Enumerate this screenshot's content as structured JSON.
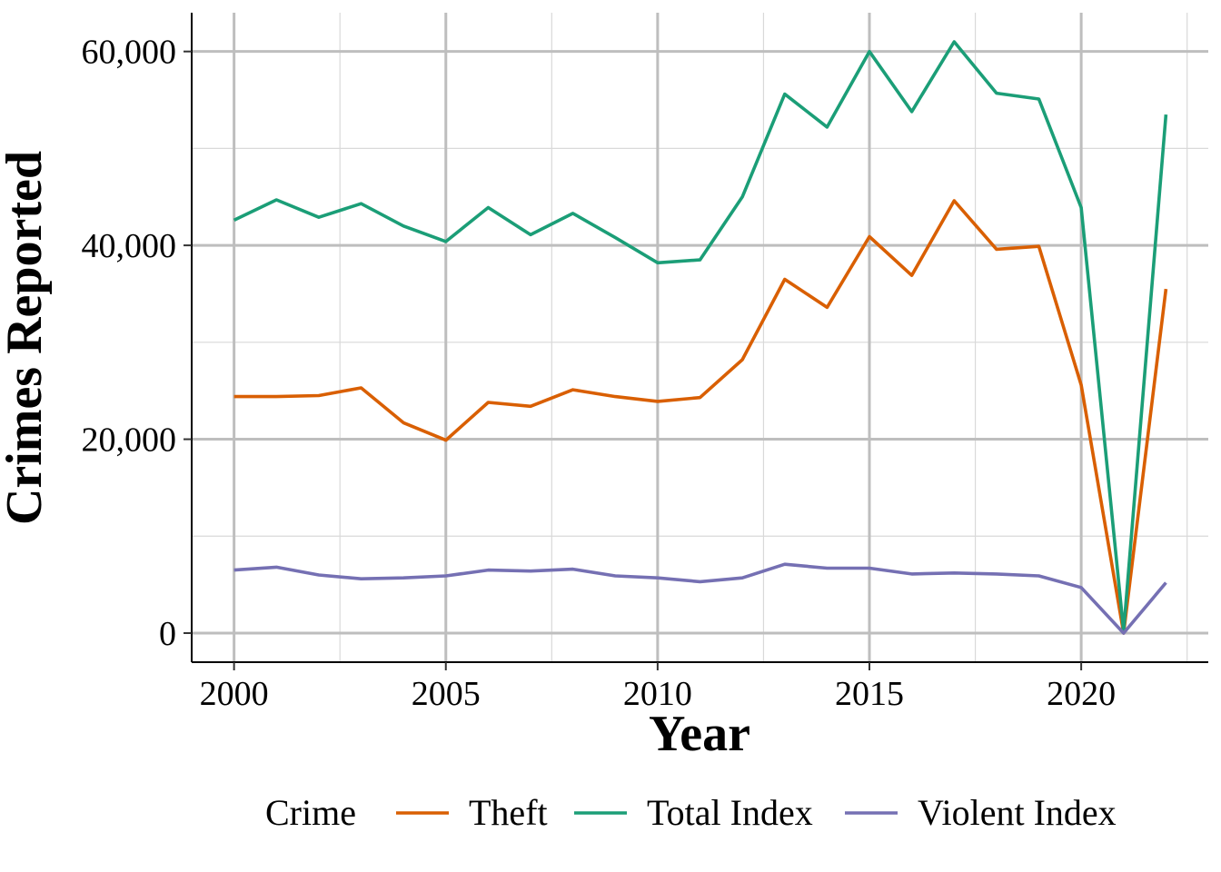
{
  "chart_data": {
    "type": "line",
    "title": "",
    "xlabel": "Year",
    "ylabel": "Crimes Reported",
    "x": [
      2000,
      2001,
      2002,
      2003,
      2004,
      2005,
      2006,
      2007,
      2008,
      2009,
      2010,
      2011,
      2012,
      2013,
      2014,
      2015,
      2016,
      2017,
      2018,
      2019,
      2020,
      2021,
      2022
    ],
    "xlim": [
      1999,
      2023
    ],
    "ylim": [
      -3000,
      64000
    ],
    "x_ticks": [
      2000,
      2005,
      2010,
      2015,
      2020
    ],
    "x_tick_labels": [
      "2000",
      "2005",
      "2010",
      "2015",
      "2020"
    ],
    "y_ticks": [
      0,
      20000,
      40000,
      60000
    ],
    "y_tick_labels": [
      "0",
      "20,000",
      "40,000",
      "60,000"
    ],
    "grid": true,
    "legend": {
      "title": "Crime",
      "position": "bottom"
    },
    "series": [
      {
        "name": "Theft",
        "color": "#d95f02",
        "values": [
          24400,
          24400,
          24500,
          25300,
          21700,
          19900,
          23800,
          23400,
          25100,
          24400,
          23900,
          24300,
          28200,
          36500,
          33600,
          40900,
          36900,
          44600,
          39600,
          39900,
          25600,
          0,
          35500
        ]
      },
      {
        "name": "Total Index",
        "color": "#1b9e77",
        "values": [
          42600,
          44700,
          42900,
          44300,
          42000,
          40400,
          43900,
          41100,
          43300,
          40800,
          38200,
          38500,
          45000,
          55600,
          52200,
          60000,
          53800,
          61000,
          55700,
          55100,
          43900,
          200,
          53500
        ]
      },
      {
        "name": "Violent Index",
        "color": "#7570b3",
        "values": [
          6500,
          6800,
          6000,
          5600,
          5700,
          5900,
          6500,
          6400,
          6600,
          5900,
          5700,
          5300,
          5700,
          7100,
          6700,
          6700,
          6100,
          6200,
          6100,
          5900,
          4700,
          0,
          5200
        ]
      }
    ]
  }
}
